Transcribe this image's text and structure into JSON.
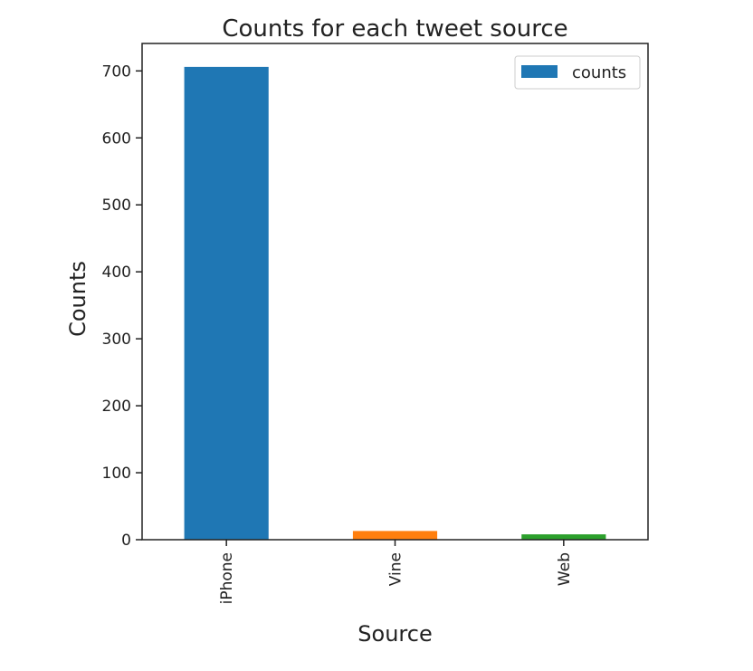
{
  "chart_data": {
    "type": "bar",
    "title": "Counts for each tweet source",
    "xlabel": "Source",
    "ylabel": "Counts",
    "categories": [
      "iPhone",
      "Vine",
      "Web"
    ],
    "series": [
      {
        "name": "counts",
        "values": [
          706,
          13,
          8
        ]
      }
    ],
    "bar_colors": [
      "#1f77b4",
      "#ff7f0e",
      "#2ca02c"
    ],
    "yticks": [
      0,
      100,
      200,
      300,
      400,
      500,
      600,
      700
    ],
    "ylim": [
      0,
      741
    ],
    "grid": false,
    "legend": {
      "position": "top-right",
      "entries": [
        "counts"
      ],
      "swatch_color": "#1f77b4"
    }
  }
}
